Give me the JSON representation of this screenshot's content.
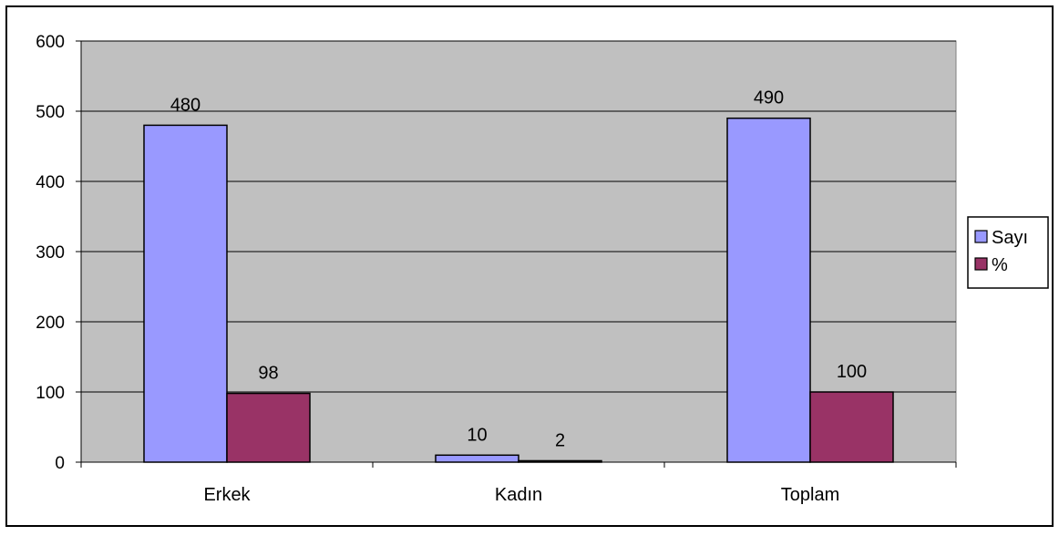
{
  "chart_data": {
    "type": "bar",
    "title": "",
    "xlabel": "",
    "ylabel": "",
    "categories": [
      "Erkek",
      "Kadın",
      "Toplam"
    ],
    "series": [
      {
        "name": "Sayı",
        "values": [
          480,
          10,
          490
        ],
        "color": "#9999ff"
      },
      {
        "name": "%",
        "values": [
          98,
          2,
          100
        ],
        "color": "#993366"
      }
    ],
    "ylim": [
      0,
      600
    ],
    "yticks": [
      "0",
      "100",
      "200",
      "300",
      "400",
      "500",
      "600"
    ],
    "grid": true,
    "legend": "right",
    "plot_background": "#c0c0c0"
  }
}
